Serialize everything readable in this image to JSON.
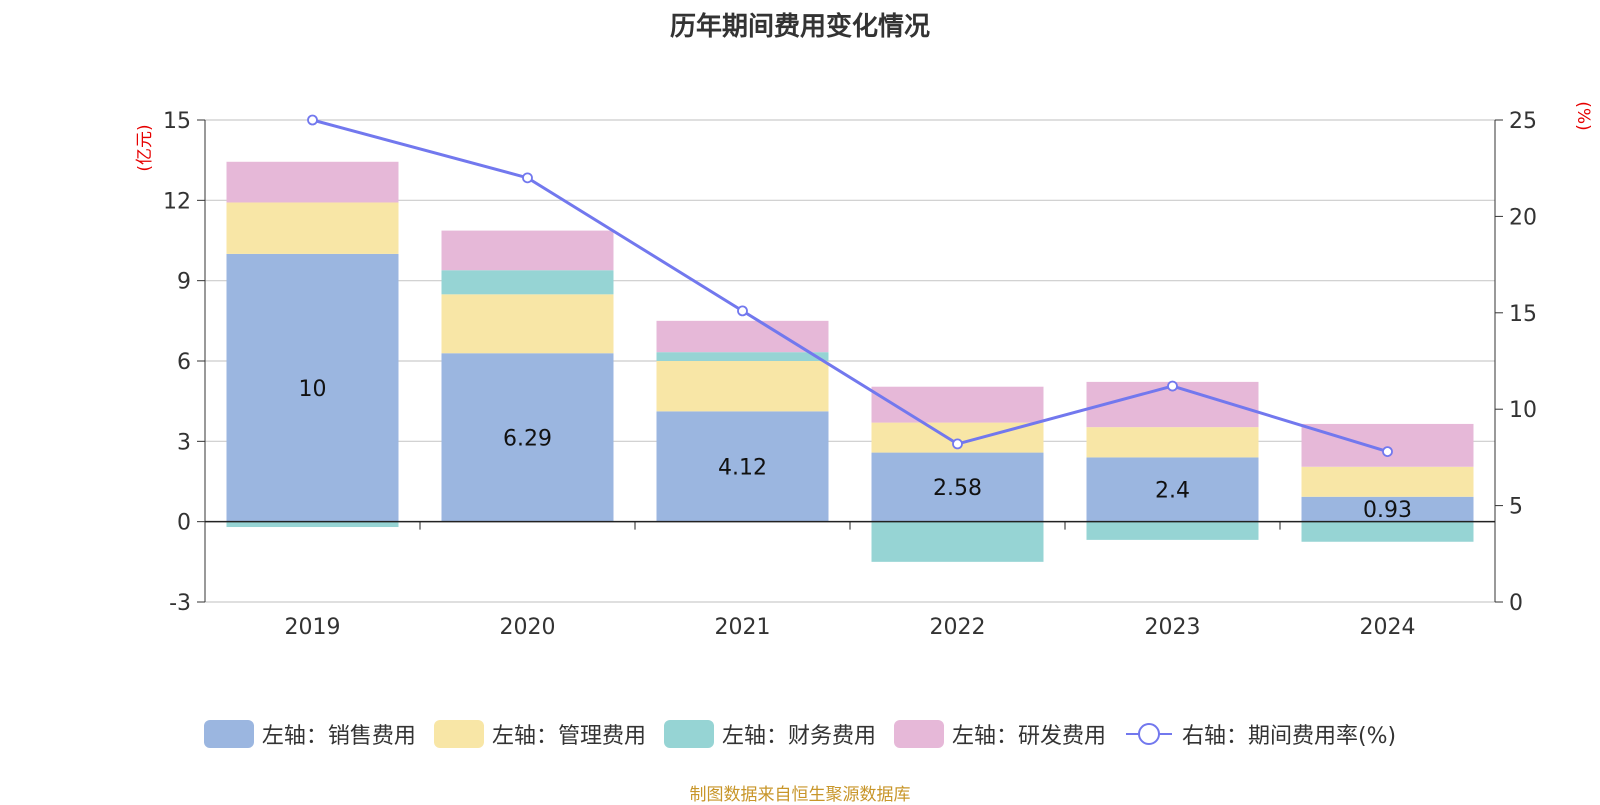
{
  "chart_data": {
    "type": "bar",
    "title": "历年期间费用变化情况",
    "categories": [
      "2019",
      "2020",
      "2021",
      "2022",
      "2023",
      "2024"
    ],
    "left_axis": {
      "unit": "(亿元)",
      "ylim": [
        -3,
        15
      ],
      "ticks": [
        "-3",
        "0",
        "3",
        "6",
        "9",
        "12",
        "15"
      ]
    },
    "right_axis": {
      "unit": "(%)",
      "ylim": [
        0,
        25
      ],
      "ticks": [
        "0",
        "5",
        "10",
        "15",
        "20",
        "25"
      ]
    },
    "series": [
      {
        "name": "左轴：销售费用",
        "axis": "left",
        "color": "#9bb6e0",
        "values": [
          10,
          6.29,
          4.12,
          2.58,
          2.4,
          0.93
        ],
        "labels": [
          "10",
          "6.29",
          "4.12",
          "2.58",
          "2.4",
          "0.93"
        ]
      },
      {
        "name": "左轴：管理费用",
        "axis": "left",
        "color": "#f8e6a6",
        "values": [
          1.92,
          2.2,
          1.88,
          1.12,
          1.13,
          1.12
        ]
      },
      {
        "name": "左轴：财务费用",
        "axis": "left",
        "color": "#96d4d4",
        "values": [
          -0.2,
          0.9,
          0.33,
          -1.5,
          -0.68,
          -0.75
        ]
      },
      {
        "name": "左轴：研发费用",
        "axis": "left",
        "color": "#e6b8d8",
        "values": [
          1.52,
          1.48,
          1.17,
          1.34,
          1.69,
          1.6
        ]
      },
      {
        "name": "右轴：期间费用率(%)",
        "axis": "right",
        "type": "line",
        "color": "#7278ee",
        "values": [
          25,
          22,
          15.1,
          8.2,
          11.2,
          7.8
        ]
      }
    ],
    "grid": true,
    "legend_position": "bottom"
  },
  "source": "制图数据来自恒生聚源数据库"
}
